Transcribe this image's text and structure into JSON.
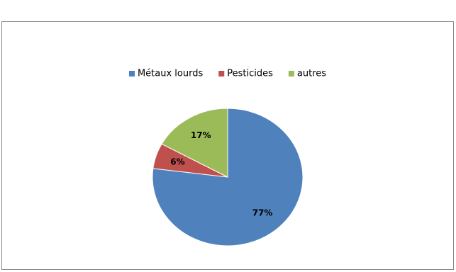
{
  "chart_data": {
    "type": "pie",
    "categories": [
      "Métaux lourds",
      "Pesticides",
      "autres"
    ],
    "values": [
      77,
      6,
      17
    ],
    "value_labels": [
      "77%",
      "6%",
      "17%"
    ],
    "colors": [
      "#4f81bd",
      "#c0504d",
      "#9bbb59"
    ],
    "legend": "top"
  }
}
